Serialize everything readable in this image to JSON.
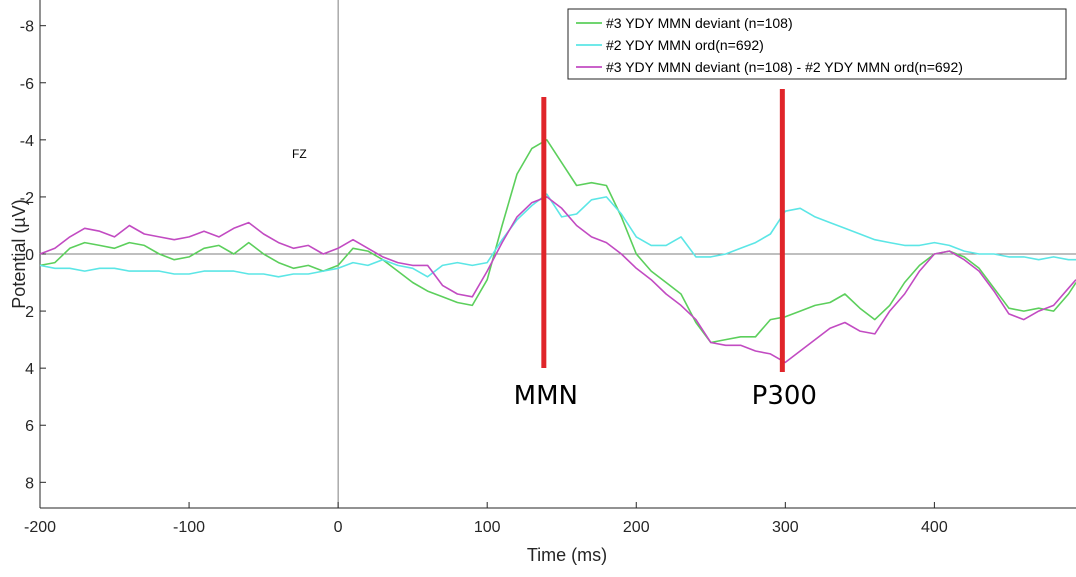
{
  "chart_data": {
    "type": "line",
    "title": "",
    "xlabel": "Time (ms)",
    "ylabel": "Potential (µV)",
    "xlim": [
      -200,
      495
    ],
    "ylim": [
      -8.9,
      8.9
    ],
    "y_reversed": true,
    "x_ticks": [
      -200,
      -100,
      0,
      100,
      200,
      300,
      400
    ],
    "y_ticks": [
      -8,
      -6,
      -4,
      -2,
      0,
      2,
      4,
      6,
      8
    ],
    "channel_label": "FZ",
    "legend_position": "top-right",
    "grid": false,
    "series": [
      {
        "name": "#3 YDY MMN deviant (n=108)",
        "color": "#5ccf5c",
        "x": [
          -200,
          -190,
          -180,
          -170,
          -160,
          -150,
          -140,
          -130,
          -120,
          -110,
          -100,
          -90,
          -80,
          -70,
          -60,
          -50,
          -40,
          -30,
          -20,
          -10,
          0,
          10,
          20,
          30,
          40,
          50,
          60,
          70,
          80,
          90,
          100,
          110,
          120,
          130,
          140,
          150,
          160,
          170,
          180,
          190,
          200,
          210,
          220,
          230,
          240,
          250,
          260,
          270,
          280,
          290,
          300,
          310,
          320,
          330,
          340,
          350,
          360,
          370,
          380,
          390,
          400,
          410,
          420,
          430,
          440,
          450,
          460,
          470,
          480,
          490,
          495
        ],
        "y": [
          0.4,
          0.3,
          -0.2,
          -0.4,
          -0.3,
          -0.2,
          -0.4,
          -0.3,
          0,
          0.2,
          0.1,
          -0.2,
          -0.3,
          0,
          -0.4,
          0,
          0.3,
          0.5,
          0.4,
          0.6,
          0.4,
          -0.2,
          -0.1,
          0.2,
          0.6,
          1.0,
          1.3,
          1.5,
          1.7,
          1.8,
          0.9,
          -1.0,
          -2.8,
          -3.7,
          -4.0,
          -3.2,
          -2.4,
          -2.5,
          -2.4,
          -1.3,
          0,
          0.6,
          1.0,
          1.4,
          2.4,
          3.1,
          3.0,
          2.9,
          2.9,
          2.3,
          2.2,
          2.0,
          1.8,
          1.7,
          1.4,
          1.9,
          2.3,
          1.8,
          1.0,
          0.4,
          0,
          -0.1,
          0.1,
          0.5,
          1.2,
          1.9,
          2.0,
          1.9,
          2.0,
          1.4,
          1.0
        ]
      },
      {
        "name": "#2 YDY MMN ord(n=692)",
        "color": "#5ce6e6",
        "x": [
          -200,
          -190,
          -180,
          -170,
          -160,
          -150,
          -140,
          -130,
          -120,
          -110,
          -100,
          -90,
          -80,
          -70,
          -60,
          -50,
          -40,
          -30,
          -20,
          -10,
          0,
          10,
          20,
          30,
          40,
          50,
          60,
          70,
          80,
          90,
          100,
          110,
          120,
          130,
          140,
          150,
          160,
          170,
          180,
          190,
          200,
          210,
          220,
          230,
          240,
          250,
          260,
          270,
          280,
          290,
          300,
          310,
          320,
          330,
          340,
          350,
          360,
          370,
          380,
          390,
          400,
          410,
          420,
          430,
          440,
          450,
          460,
          470,
          480,
          490,
          495
        ],
        "y": [
          0.4,
          0.5,
          0.5,
          0.6,
          0.5,
          0.5,
          0.6,
          0.6,
          0.6,
          0.7,
          0.7,
          0.6,
          0.6,
          0.6,
          0.7,
          0.7,
          0.8,
          0.7,
          0.7,
          0.6,
          0.5,
          0.3,
          0.4,
          0.2,
          0.4,
          0.5,
          0.8,
          0.4,
          0.3,
          0.4,
          0.3,
          -0.5,
          -1.2,
          -1.7,
          -2.1,
          -1.3,
          -1.4,
          -1.9,
          -2.0,
          -1.4,
          -0.6,
          -0.3,
          -0.3,
          -0.6,
          0.1,
          0.1,
          0,
          -0.2,
          -0.4,
          -0.7,
          -1.5,
          -1.6,
          -1.3,
          -1.1,
          -0.9,
          -0.7,
          -0.5,
          -0.4,
          -0.3,
          -0.3,
          -0.4,
          -0.3,
          -0.1,
          0,
          0,
          0.1,
          0.1,
          0.2,
          0.1,
          0.2,
          0.2
        ]
      },
      {
        "name": "#3 YDY MMN deviant (n=108) - #2 YDY MMN ord(n=692)",
        "color": "#c24bc2",
        "x": [
          -200,
          -190,
          -180,
          -170,
          -160,
          -150,
          -140,
          -130,
          -120,
          -110,
          -100,
          -90,
          -80,
          -70,
          -60,
          -50,
          -40,
          -30,
          -20,
          -10,
          0,
          10,
          20,
          30,
          40,
          50,
          60,
          70,
          80,
          90,
          100,
          110,
          120,
          130,
          140,
          150,
          160,
          170,
          180,
          190,
          200,
          210,
          220,
          230,
          240,
          250,
          260,
          270,
          280,
          290,
          300,
          310,
          320,
          330,
          340,
          350,
          360,
          370,
          380,
          390,
          400,
          410,
          420,
          430,
          440,
          450,
          460,
          470,
          480,
          490,
          495
        ],
        "y": [
          0,
          -0.2,
          -0.6,
          -0.9,
          -0.8,
          -0.6,
          -1.0,
          -0.7,
          -0.6,
          -0.5,
          -0.6,
          -0.8,
          -0.6,
          -0.9,
          -1.1,
          -0.7,
          -0.4,
          -0.2,
          -0.3,
          0,
          -0.2,
          -0.5,
          -0.2,
          0.1,
          0.3,
          0.4,
          0.4,
          1.1,
          1.4,
          1.5,
          0.6,
          -0.4,
          -1.3,
          -1.8,
          -2.0,
          -1.6,
          -1.0,
          -0.6,
          -0.4,
          0,
          0.5,
          0.9,
          1.4,
          1.8,
          2.3,
          3.1,
          3.2,
          3.2,
          3.4,
          3.5,
          3.8,
          3.4,
          3.0,
          2.6,
          2.4,
          2.7,
          2.8,
          2.0,
          1.4,
          0.6,
          0,
          -0.1,
          0.2,
          0.6,
          1.3,
          2.1,
          2.3,
          2.0,
          1.8,
          1.2,
          0.9
        ]
      }
    ],
    "annotations": [
      {
        "label": "MMN",
        "x": 138,
        "color": "#e0252a"
      },
      {
        "label": "P300",
        "x": 298,
        "color": "#e0252a"
      }
    ]
  }
}
